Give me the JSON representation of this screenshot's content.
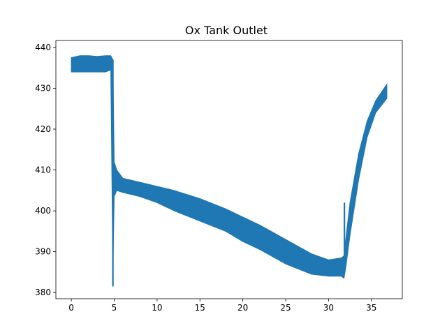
{
  "chart_data": {
    "type": "line",
    "title": "Ox Tank Outlet",
    "xlabel": "",
    "ylabel": "",
    "xlim": [
      -1.8,
      38.6
    ],
    "ylim": [
      378.5,
      441.7
    ],
    "xticks": [
      0,
      5,
      10,
      15,
      20,
      25,
      30,
      35
    ],
    "yticks": [
      380,
      390,
      400,
      410,
      420,
      430,
      440
    ],
    "grid": false,
    "legend": "none",
    "series": [
      {
        "color": "#1f77b4",
        "band": {
          "x": [
            0,
            1,
            2,
            3,
            4,
            4.6,
            4.85,
            5.0,
            5.3,
            6,
            8,
            10,
            12,
            15,
            18,
            20,
            22,
            25,
            28,
            30,
            31.5,
            31.8,
            32.0,
            32.5,
            33.5,
            34.5,
            35.5,
            36.8
          ],
          "upper": [
            437.5,
            438.0,
            438.0,
            437.8,
            438.0,
            438.0,
            437.0,
            412.0,
            410.0,
            408.0,
            407.0,
            406.0,
            405.0,
            403.0,
            400.5,
            398.5,
            396.5,
            393.0,
            389.5,
            388.0,
            388.5,
            389.0,
            393.0,
            402.0,
            414.0,
            422.0,
            427.0,
            431.0
          ],
          "lower": [
            434.0,
            434.0,
            434.0,
            434.0,
            434.0,
            434.5,
            385.0,
            403.5,
            405.0,
            404.5,
            403.5,
            402.0,
            400.0,
            397.5,
            395.0,
            392.5,
            390.5,
            387.0,
            384.5,
            384.0,
            384.0,
            383.5,
            386.0,
            394.0,
            407.5,
            418.0,
            424.0,
            427.5
          ]
        },
        "spikes": [
          {
            "x": 4.85,
            "y_from": 381.5,
            "y_to": 437.0
          },
          {
            "x": 31.85,
            "y_from": 386.0,
            "y_to": 402.0
          }
        ]
      }
    ]
  }
}
